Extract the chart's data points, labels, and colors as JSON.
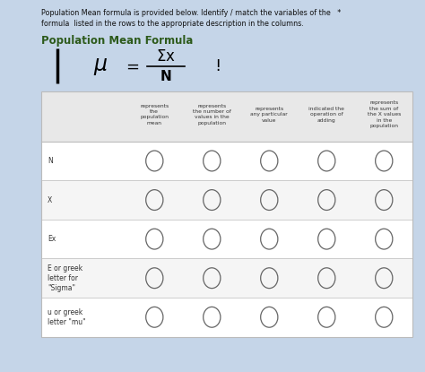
{
  "title_line1": "Population Mean formula is provided below. Identify / match the variables of the   *",
  "title_line2": "formula  listed in the rows to the appropriate description in the columns.",
  "subtitle": "Population Mean Formula",
  "bg_color": "#c5d5e8",
  "panel_color": "#f2f2f2",
  "col_headers": [
    "represents\nthe\npopulation\nmean",
    "represents\nthe number of\nvalues in the\npopulation",
    "represents\nany particular\nvalue",
    "indicated the\noperation of\nadding",
    "represents\nthe sum of\nthe X values\nin the\npopulation"
  ],
  "row_labels": [
    "N",
    "X",
    "Ex",
    "E or greek\nletter for\n\"Sigma\"",
    "u or greek\nletter \"mu\""
  ],
  "num_cols": 5,
  "num_rows": 5,
  "circle_color": "#666666",
  "line_color": "#bbbbbb",
  "header_text_color": "#333333",
  "row_text_color": "#333333",
  "title_color": "#111111",
  "subtitle_color": "#2d5a1b",
  "white": "#ffffff",
  "row_bg_even": "#f5f5f5",
  "row_bg_odd": "#ffffff"
}
